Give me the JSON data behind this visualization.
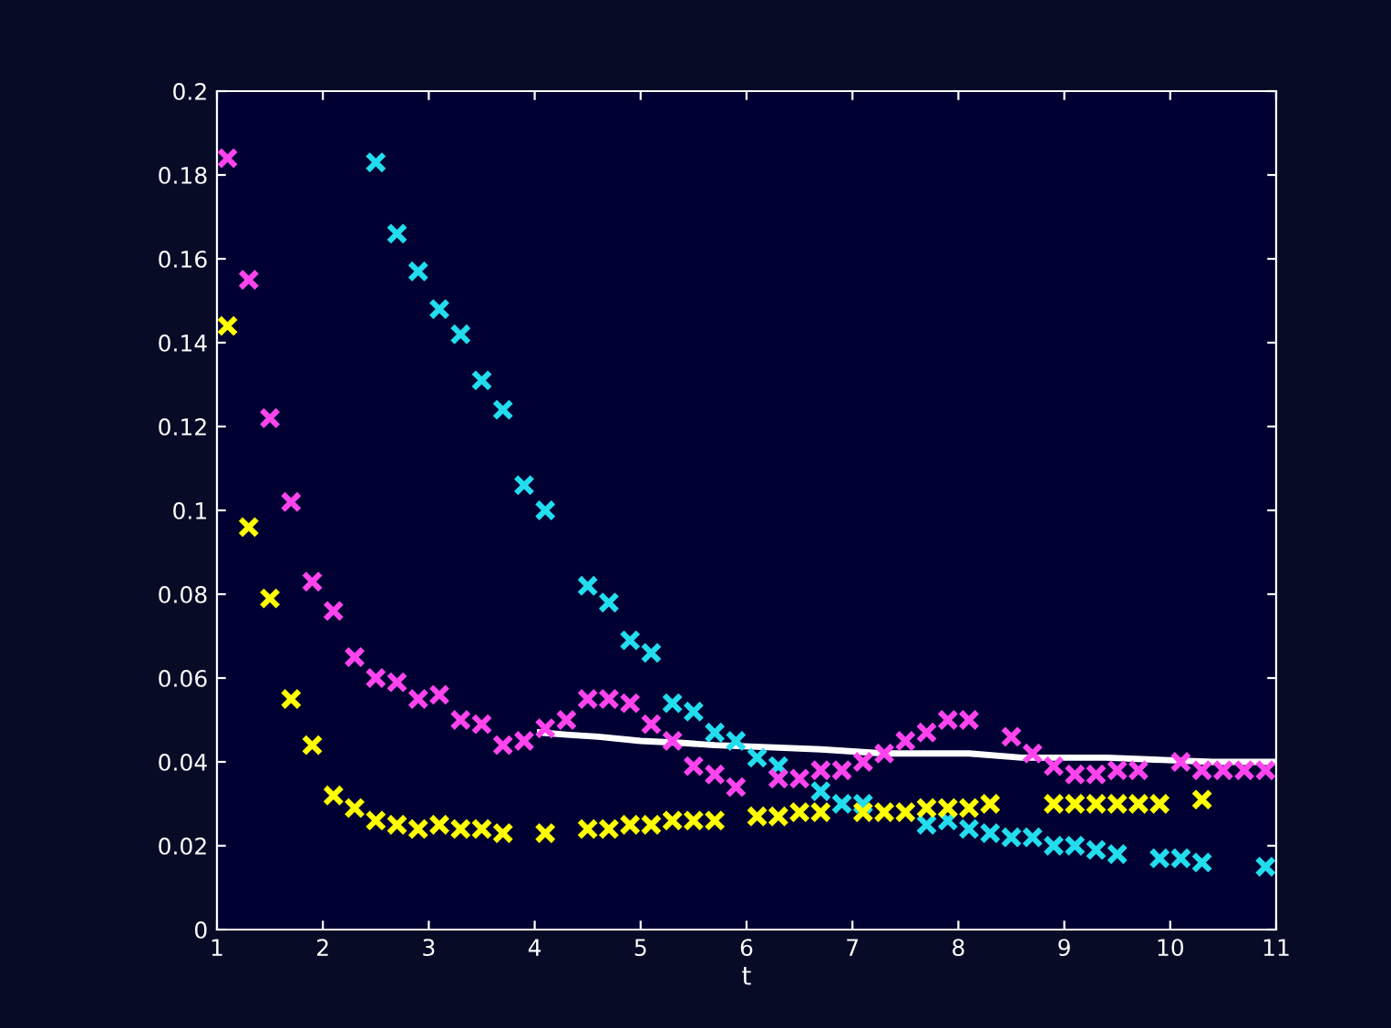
{
  "chart_data": {
    "type": "scatter",
    "xlabel": "t",
    "marker": "cross",
    "grid": false,
    "legend": false,
    "xlim": [
      1,
      11
    ],
    "ylim": [
      0,
      0.2
    ],
    "xticks": [
      1,
      2,
      3,
      4,
      5,
      6,
      7,
      8,
      9,
      10,
      11
    ],
    "yticks": [
      0,
      0.02,
      0.04,
      0.06,
      0.08,
      0.1,
      0.12,
      0.14,
      0.16,
      0.18,
      0.2
    ],
    "series": [
      {
        "color": "#ffff00",
        "x": [
          1.1,
          1.3,
          1.5,
          1.7,
          1.9,
          2.1,
          2.3,
          2.5,
          2.7,
          2.9,
          3.1,
          3.3,
          3.5,
          3.7,
          4.1,
          4.5,
          4.7,
          4.9,
          5.1,
          5.3,
          5.5,
          5.7,
          6.1,
          6.3,
          6.5,
          6.7,
          7.1,
          7.3,
          7.5,
          7.7,
          7.9,
          8.1,
          8.3,
          8.9,
          9.1,
          9.3,
          9.5,
          9.7,
          9.9,
          10.3
        ],
        "values": [
          0.144,
          0.096,
          0.079,
          0.055,
          0.044,
          0.032,
          0.029,
          0.026,
          0.025,
          0.024,
          0.025,
          0.024,
          0.024,
          0.023,
          0.023,
          0.024,
          0.024,
          0.025,
          0.025,
          0.026,
          0.026,
          0.026,
          0.027,
          0.027,
          0.028,
          0.028,
          0.028,
          0.028,
          0.028,
          0.029,
          0.029,
          0.029,
          0.03,
          0.03,
          0.03,
          0.03,
          0.03,
          0.03,
          0.03,
          0.031
        ]
      },
      {
        "color": "#ff44ee",
        "x": [
          1.1,
          1.3,
          1.5,
          1.7,
          1.9,
          2.1,
          2.3,
          2.5,
          2.7,
          2.9,
          3.1,
          3.3,
          3.5,
          3.7,
          3.9,
          4.1,
          4.3,
          4.5,
          4.7,
          4.9,
          5.1,
          5.3,
          5.5,
          5.7,
          5.9,
          6.3,
          6.5,
          6.7,
          6.9,
          7.1,
          7.3,
          7.5,
          7.7,
          7.9,
          8.1,
          8.5,
          8.7,
          8.9,
          9.1,
          9.3,
          9.5,
          9.7,
          10.1,
          10.3,
          10.5,
          10.7,
          10.9
        ],
        "values": [
          0.184,
          0.155,
          0.122,
          0.102,
          0.083,
          0.076,
          0.065,
          0.06,
          0.059,
          0.055,
          0.056,
          0.05,
          0.049,
          0.044,
          0.045,
          0.048,
          0.05,
          0.055,
          0.055,
          0.054,
          0.049,
          0.045,
          0.039,
          0.037,
          0.034,
          0.036,
          0.036,
          0.038,
          0.038,
          0.04,
          0.042,
          0.045,
          0.047,
          0.05,
          0.05,
          0.046,
          0.042,
          0.039,
          0.037,
          0.037,
          0.038,
          0.038,
          0.04,
          0.038,
          0.038,
          0.038,
          0.038
        ]
      },
      {
        "color": "#22ddee",
        "x": [
          2.5,
          2.7,
          2.9,
          3.1,
          3.3,
          3.5,
          3.7,
          3.9,
          4.1,
          4.5,
          4.7,
          4.9,
          5.1,
          5.3,
          5.5,
          5.7,
          5.9,
          6.1,
          6.3,
          6.5,
          6.7,
          6.9,
          7.1,
          7.5,
          7.7,
          7.9,
          8.1,
          8.3,
          8.5,
          8.7,
          8.9,
          9.1,
          9.3,
          9.5,
          9.9,
          10.1,
          10.3,
          10.9
        ],
        "values": [
          0.183,
          0.166,
          0.157,
          0.148,
          0.142,
          0.131,
          0.124,
          0.106,
          0.1,
          0.082,
          0.078,
          0.069,
          0.066,
          0.054,
          0.052,
          0.047,
          0.045,
          0.041,
          0.039,
          null,
          0.033,
          0.03,
          0.03,
          null,
          0.025,
          0.026,
          0.024,
          0.023,
          0.022,
          0.022,
          0.02,
          0.02,
          0.019,
          0.018,
          0.017,
          0.017,
          0.016,
          0.015
        ]
      },
      {
        "type": "line",
        "marker": "none",
        "color": "#ffffff",
        "x": [
          4.05,
          4.3,
          4.6,
          5.0,
          5.4,
          5.7,
          6.2,
          6.7,
          7.3,
          8.1,
          8.6,
          9.4,
          10.4,
          11
        ],
        "values": [
          0.047,
          0.0465,
          0.046,
          0.045,
          0.0445,
          0.044,
          0.0435,
          0.043,
          0.042,
          0.042,
          0.041,
          0.041,
          0.04,
          0.04
        ]
      }
    ]
  }
}
